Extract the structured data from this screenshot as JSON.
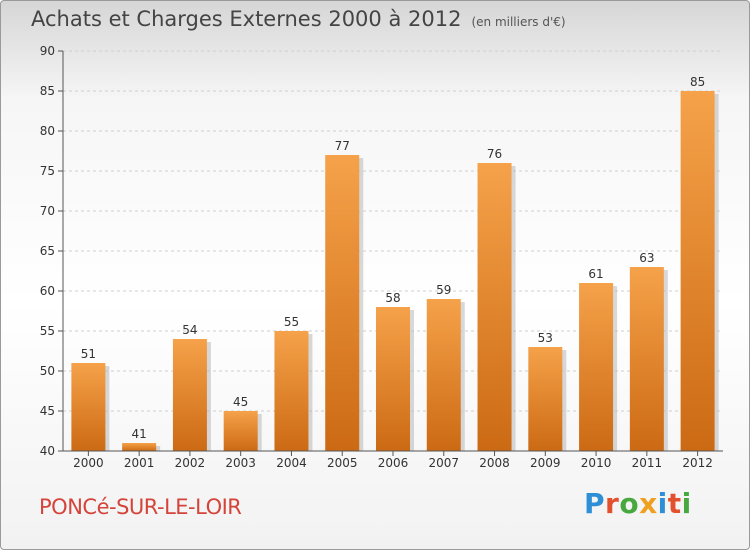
{
  "header": {
    "title": "Achats et Charges Externes 2000 à 2012",
    "unit": "(en milliers d'€)"
  },
  "footer": {
    "commune": "PONCé-SUR-LE-LOIR",
    "logo_text": "Proxiti",
    "logo_colors": [
      "#2f8fd6",
      "#e2502d",
      "#47a83f",
      "#f0a020",
      "#2f8fd6",
      "#e2502d",
      "#47a83f"
    ]
  },
  "colors": {
    "bar_top": "#f5a24a",
    "bar_bottom": "#cc6a14",
    "bar_shadow": "#b8b8b8",
    "grid": "#cfcfcf"
  },
  "chart_data": {
    "type": "bar",
    "title": "Achats et Charges Externes 2000 à 2012",
    "subtitle": "(en milliers d'€)",
    "xlabel": "",
    "ylabel": "",
    "categories": [
      "2000",
      "2001",
      "2002",
      "2003",
      "2004",
      "2005",
      "2006",
      "2007",
      "2008",
      "2009",
      "2010",
      "2011",
      "2012"
    ],
    "values": [
      51,
      41,
      54,
      45,
      55,
      77,
      58,
      59,
      76,
      53,
      61,
      63,
      85
    ],
    "ylim": [
      40,
      90
    ],
    "yticks": [
      40,
      45,
      50,
      55,
      60,
      65,
      70,
      75,
      80,
      85,
      90
    ],
    "grid": true,
    "legend": "none"
  }
}
